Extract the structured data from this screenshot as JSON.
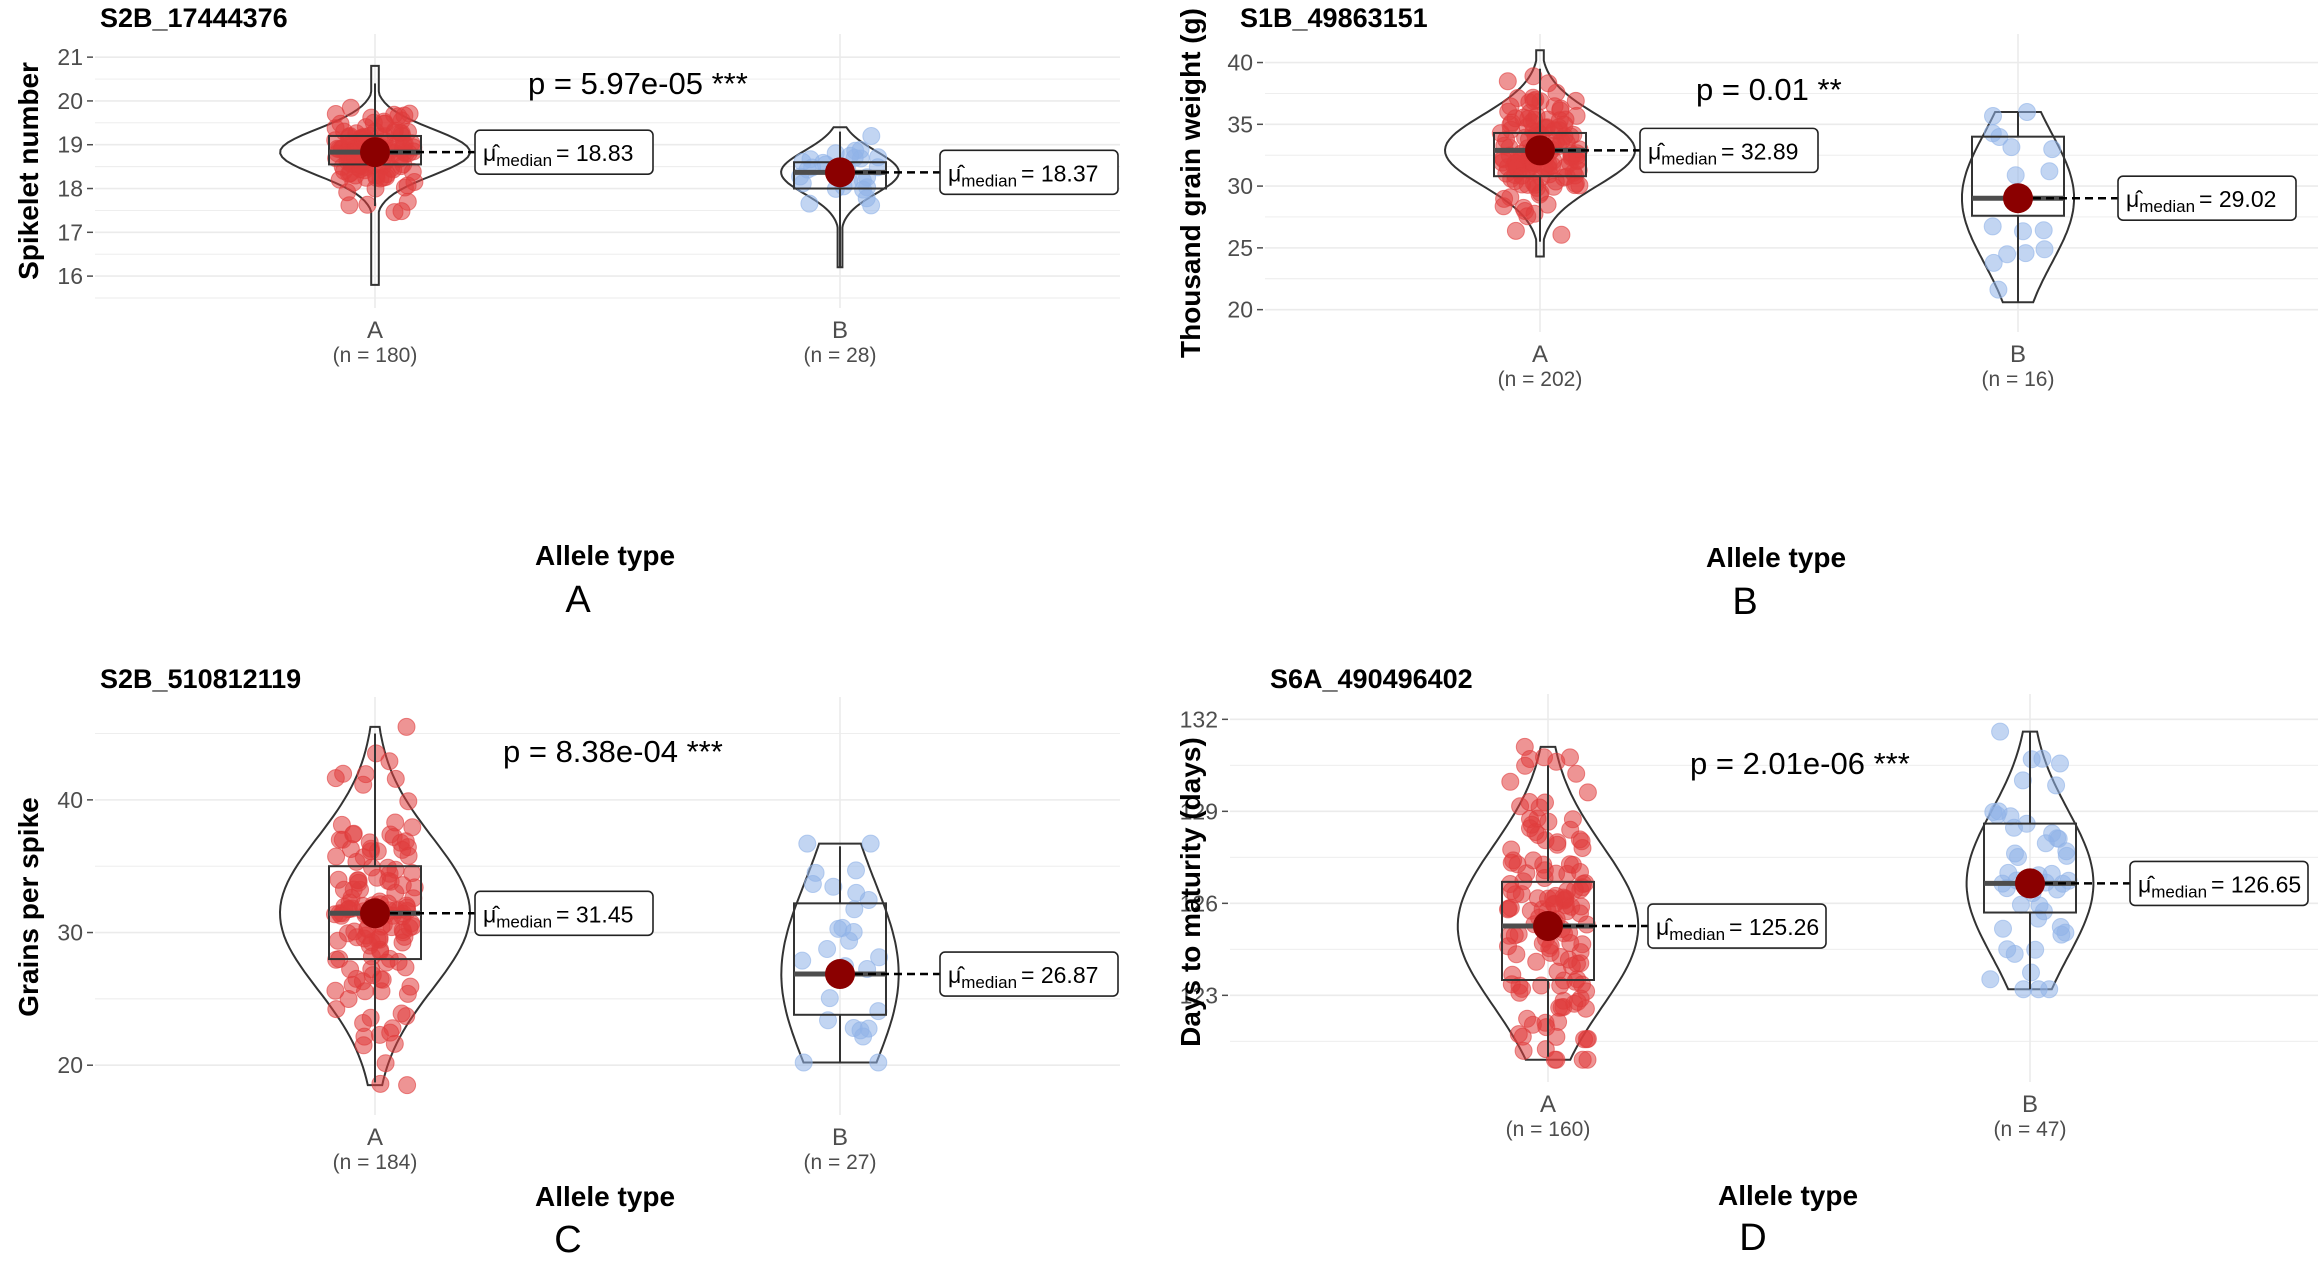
{
  "chart_data": [
    {
      "type": "violin-box-scatter",
      "panel_letter": "A",
      "title": "S2B_17444376",
      "xlabel": "Allele type",
      "ylabel": "Spikelet number",
      "ylim": [
        15.5,
        21.3
      ],
      "yticks": [
        16,
        17,
        18,
        19,
        20,
        21
      ],
      "p_label": "p = 5.97e-05 ***",
      "groups": [
        {
          "name": "A",
          "n_label": "(n = 180)",
          "n": 180,
          "median": 18.83,
          "median_label": "= 18.83",
          "q1": 18.55,
          "q3": 19.2,
          "wmin": 17.6,
          "wmax": 20.4,
          "min": 15.8,
          "max": 20.8,
          "color": "#e03c3c"
        },
        {
          "name": "B",
          "n_label": "(n = 28)",
          "n": 28,
          "median": 18.37,
          "median_label": "= 18.37",
          "q1": 18.0,
          "q3": 18.6,
          "wmin": 16.2,
          "wmax": 19.3,
          "min": 16.2,
          "max": 19.4,
          "color": "#8fb3e8"
        }
      ]
    },
    {
      "type": "violin-box-scatter",
      "panel_letter": "B",
      "title": "S1B_49863151",
      "xlabel": "Allele type",
      "ylabel": "Thousand grain weight (g)",
      "ylim": [
        19.0,
        41.5
      ],
      "yticks": [
        20,
        25,
        30,
        35,
        40
      ],
      "p_label": "p = 0.01 **",
      "groups": [
        {
          "name": "A",
          "n_label": "(n = 202)",
          "n": 202,
          "median": 32.89,
          "median_label": "= 32.89",
          "q1": 30.8,
          "q3": 34.3,
          "wmin": 25.5,
          "wmax": 39.5,
          "min": 24.3,
          "max": 41.0,
          "color": "#e03c3c"
        },
        {
          "name": "B",
          "n_label": "(n = 16)",
          "n": 16,
          "median": 29.02,
          "median_label": "= 29.02",
          "q1": 27.6,
          "q3": 34.0,
          "wmin": 20.6,
          "wmax": 36.0,
          "min": 20.6,
          "max": 36.0,
          "color": "#8fb3e8"
        }
      ]
    },
    {
      "type": "violin-box-scatter",
      "panel_letter": "C",
      "title": "S2B_510812119",
      "xlabel": "Allele type",
      "ylabel": "Grains per spike",
      "ylim": [
        17.0,
        47.0
      ],
      "yticks": [
        20,
        30,
        40
      ],
      "p_label": "p = 8.38e-04 ***",
      "groups": [
        {
          "name": "A",
          "n_label": "(n = 184)",
          "n": 184,
          "median": 31.45,
          "median_label": "= 31.45",
          "q1": 28.0,
          "q3": 35.0,
          "wmin": 18.7,
          "wmax": 45.0,
          "min": 18.5,
          "max": 45.5,
          "color": "#e03c3c"
        },
        {
          "name": "B",
          "n_label": "(n = 27)",
          "n": 27,
          "median": 26.87,
          "median_label": "= 26.87",
          "q1": 23.8,
          "q3": 32.2,
          "wmin": 20.2,
          "wmax": 36.5,
          "min": 20.2,
          "max": 36.7,
          "color": "#8fb3e8"
        }
      ]
    },
    {
      "type": "violin-box-scatter",
      "panel_letter": "D",
      "title": "S6A_490496402",
      "xlabel": "Allele type",
      "ylabel": "Days to maturity (days)",
      "ylim": [
        120.5,
        132.5
      ],
      "yticks": [
        123,
        126,
        129,
        132
      ],
      "p_label": "p = 2.01e-06 ***",
      "groups": [
        {
          "name": "A",
          "n_label": "(n = 160)",
          "n": 160,
          "median": 125.26,
          "median_label": "= 125.26",
          "q1": 123.5,
          "q3": 126.7,
          "wmin": 121.0,
          "wmax": 130.5,
          "min": 120.9,
          "max": 131.1,
          "color": "#e03c3c"
        },
        {
          "name": "B",
          "n_label": "(n = 47)",
          "n": 47,
          "median": 126.65,
          "median_label": "= 126.65",
          "q1": 125.7,
          "q3": 128.6,
          "wmin": 123.2,
          "wmax": 131.6,
          "min": 123.2,
          "max": 131.6,
          "color": "#8fb3e8"
        }
      ]
    }
  ]
}
